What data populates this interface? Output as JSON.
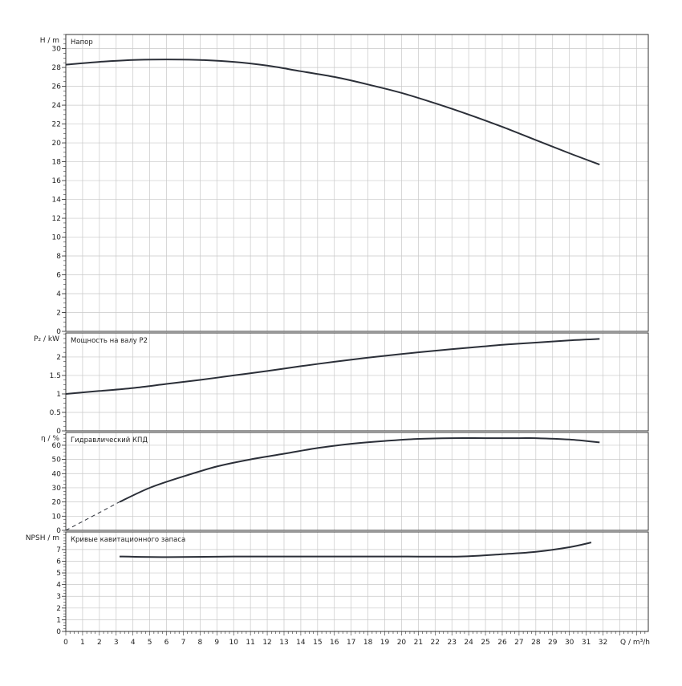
{
  "chart_data": [
    {
      "type": "line",
      "title": "Напор",
      "ylabel": "H / m",
      "ylim": [
        0,
        31.5
      ],
      "yticks": [
        "0",
        "2",
        "4",
        "6",
        "8",
        "10",
        "12",
        "14",
        "16",
        "18",
        "20",
        "22",
        "24",
        "26",
        "28",
        "30"
      ],
      "series": [
        {
          "x": [
            0,
            2,
            4,
            6,
            8,
            10,
            12,
            14,
            16,
            18,
            20,
            22,
            24,
            26,
            28,
            30,
            31.8
          ],
          "y": [
            28.3,
            28.6,
            28.8,
            28.85,
            28.8,
            28.6,
            28.2,
            27.6,
            27.0,
            26.2,
            25.3,
            24.2,
            23.0,
            21.7,
            20.3,
            18.9,
            17.7
          ]
        }
      ]
    },
    {
      "type": "line",
      "title": "Мощность на валу P2",
      "ylabel": "P₂ / kW",
      "ylim": [
        0,
        2.65
      ],
      "yticks": [
        "0",
        "0.5",
        "1",
        "1.5",
        "2"
      ],
      "series": [
        {
          "x": [
            0,
            2,
            4,
            6,
            8,
            10,
            12,
            14,
            16,
            18,
            20,
            22,
            24,
            26,
            28,
            30,
            31.8
          ],
          "y": [
            1.0,
            1.08,
            1.16,
            1.27,
            1.38,
            1.5,
            1.62,
            1.75,
            1.87,
            1.98,
            2.08,
            2.17,
            2.25,
            2.33,
            2.39,
            2.45,
            2.49
          ]
        }
      ]
    },
    {
      "type": "line",
      "title": "Гидравлический КПД",
      "ylabel": "η / %",
      "ylim": [
        0,
        69
      ],
      "yticks": [
        "0",
        "10",
        "20",
        "30",
        "40",
        "50",
        "60"
      ],
      "dashed_series": [
        {
          "x": [
            0,
            3.2
          ],
          "y": [
            0,
            20
          ]
        }
      ],
      "series": [
        {
          "x": [
            3.2,
            5,
            7,
            9,
            11,
            13,
            15,
            17,
            19,
            21,
            23,
            25,
            27,
            28,
            30,
            31.8
          ],
          "y": [
            20,
            30,
            38,
            45,
            50,
            54,
            58,
            61,
            63,
            64.5,
            65,
            65,
            65,
            65,
            64,
            62
          ]
        }
      ]
    },
    {
      "type": "line",
      "title": "Кривые кавитационного запаса",
      "ylabel": "NPSH / m",
      "ylim": [
        0,
        8.5
      ],
      "yticks": [
        "0",
        "1",
        "2",
        "3",
        "4",
        "5",
        "6",
        "7"
      ],
      "series": [
        {
          "x": [
            3.2,
            6,
            10,
            15,
            20,
            23.5,
            26,
            28,
            30,
            31.3
          ],
          "y": [
            6.4,
            6.35,
            6.4,
            6.4,
            6.4,
            6.4,
            6.6,
            6.8,
            7.2,
            7.6
          ]
        }
      ]
    }
  ],
  "x_axis": {
    "label": "Q / m³/h",
    "ticks": [
      "0",
      "1",
      "2",
      "3",
      "4",
      "5",
      "6",
      "7",
      "8",
      "9",
      "10",
      "11",
      "12",
      "13",
      "14",
      "15",
      "16",
      "17",
      "18",
      "19",
      "20",
      "21",
      "22",
      "23",
      "24",
      "25",
      "26",
      "27",
      "28",
      "29",
      "30",
      "31",
      "32"
    ],
    "xlim": [
      0,
      34.7
    ]
  },
  "colors": {
    "curve": "#2b2f38",
    "grid": "#c8c8c8",
    "frame": "#333333"
  }
}
